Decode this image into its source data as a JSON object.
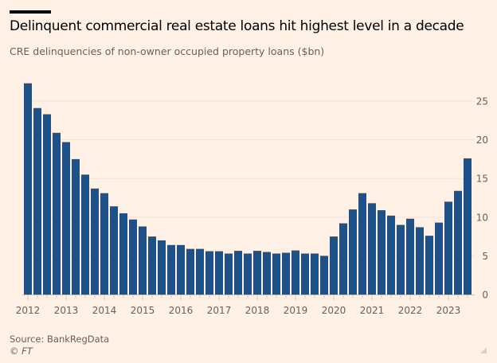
{
  "chart_data": {
    "type": "bar",
    "title": "Delinquent commercial real estate loans hit highest level in a decade",
    "subtitle": "CRE delinquencies of non-owner occupied property loans ($bn)",
    "xlabel": "",
    "ylabel": "",
    "ylim": [
      0,
      27.5
    ],
    "yticks": [
      0,
      5,
      10,
      15,
      20,
      25
    ],
    "grid": true,
    "y_axis_side": "right",
    "bar_color": "#1F5189",
    "categories": [
      "2012 Q1",
      "2012 Q2",
      "2012 Q3",
      "2012 Q4",
      "2013 Q1",
      "2013 Q2",
      "2013 Q3",
      "2013 Q4",
      "2014 Q1",
      "2014 Q2",
      "2014 Q3",
      "2014 Q4",
      "2015 Q1",
      "2015 Q2",
      "2015 Q3",
      "2015 Q4",
      "2016 Q1",
      "2016 Q2",
      "2016 Q3",
      "2016 Q4",
      "2017 Q1",
      "2017 Q2",
      "2017 Q3",
      "2017 Q4",
      "2018 Q1",
      "2018 Q2",
      "2018 Q3",
      "2018 Q4",
      "2019 Q1",
      "2019 Q2",
      "2019 Q3",
      "2019 Q4",
      "2020 Q1",
      "2020 Q2",
      "2020 Q3",
      "2020 Q4",
      "2021 Q1",
      "2021 Q2",
      "2021 Q3",
      "2021 Q4",
      "2022 Q1",
      "2022 Q2",
      "2022 Q3",
      "2022 Q4",
      "2023 Q1",
      "2023 Q2",
      "2023 Q3"
    ],
    "values": [
      27.3,
      24.1,
      23.3,
      20.9,
      19.7,
      17.5,
      15.5,
      13.7,
      13.1,
      11.4,
      10.5,
      9.7,
      8.8,
      7.5,
      7.0,
      6.4,
      6.4,
      5.9,
      5.9,
      5.6,
      5.6,
      5.3,
      5.65,
      5.3,
      5.65,
      5.5,
      5.3,
      5.4,
      5.7,
      5.3,
      5.3,
      5.0,
      7.5,
      9.2,
      11.0,
      13.1,
      11.8,
      10.9,
      10.2,
      9.0,
      9.8,
      8.7,
      7.6,
      9.3,
      12.0,
      13.4,
      17.6
    ],
    "xtick_labels": [
      "2012",
      "2013",
      "2014",
      "2015",
      "2016",
      "2017",
      "2018",
      "2019",
      "2020",
      "2021",
      "2022",
      "2023"
    ]
  },
  "footer": {
    "source": "Source: BankRegData",
    "copyright": "© FT"
  }
}
